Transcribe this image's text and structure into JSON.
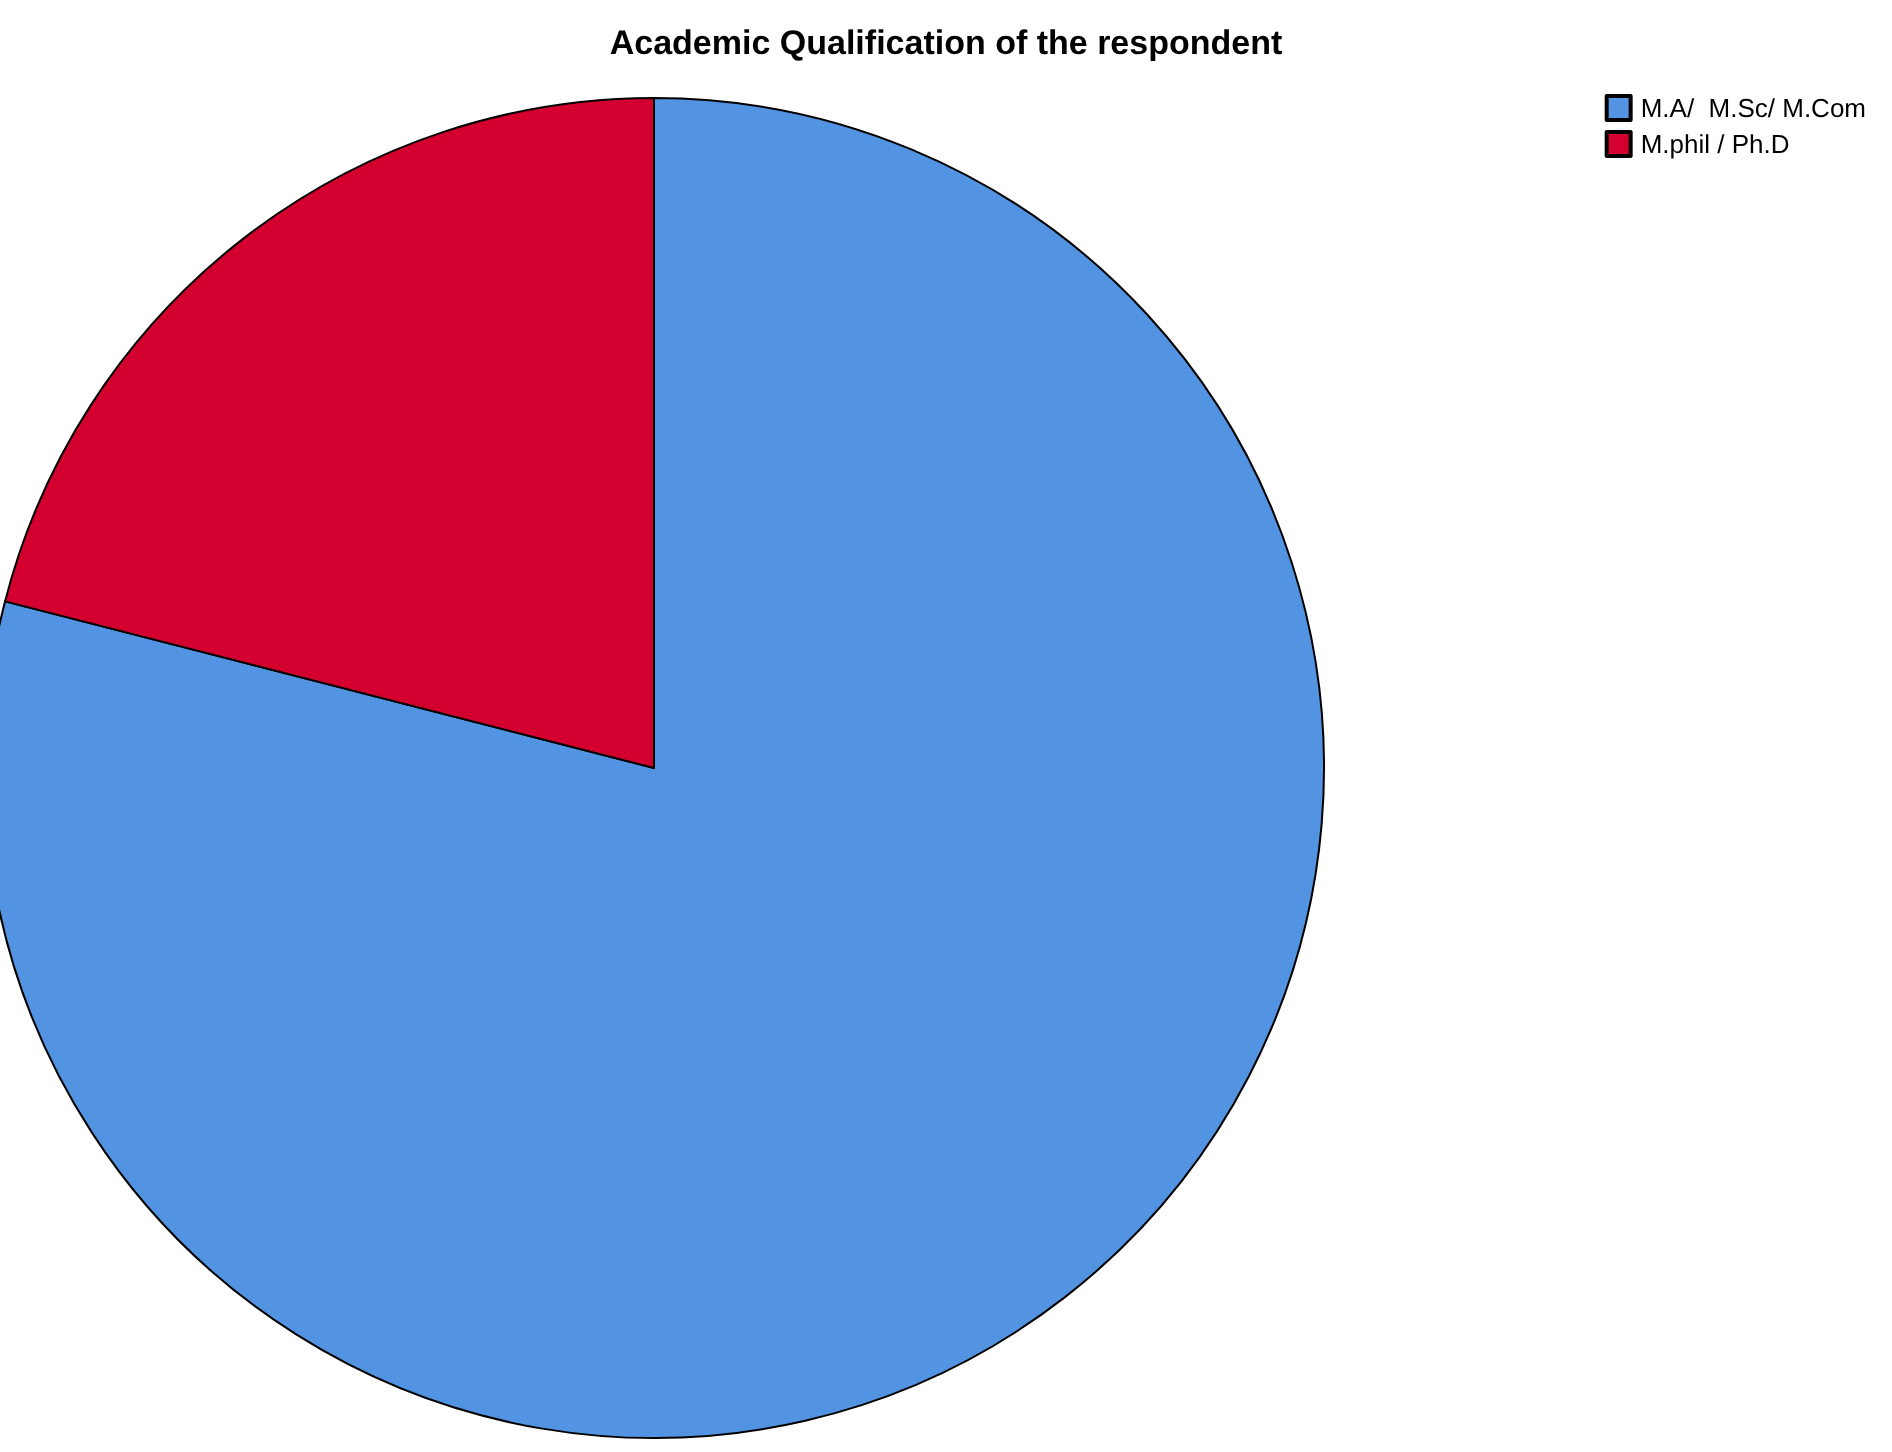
{
  "chart_data": {
    "type": "pie",
    "title": "Academic Qualification of the respondent",
    "categories": [
      "M.A/  M.Sc/ M.Com",
      "M.phil / Ph.D"
    ],
    "values": [
      79,
      21
    ],
    "colors": [
      "#5294e2",
      "#d3002f"
    ],
    "legend": "top right"
  }
}
